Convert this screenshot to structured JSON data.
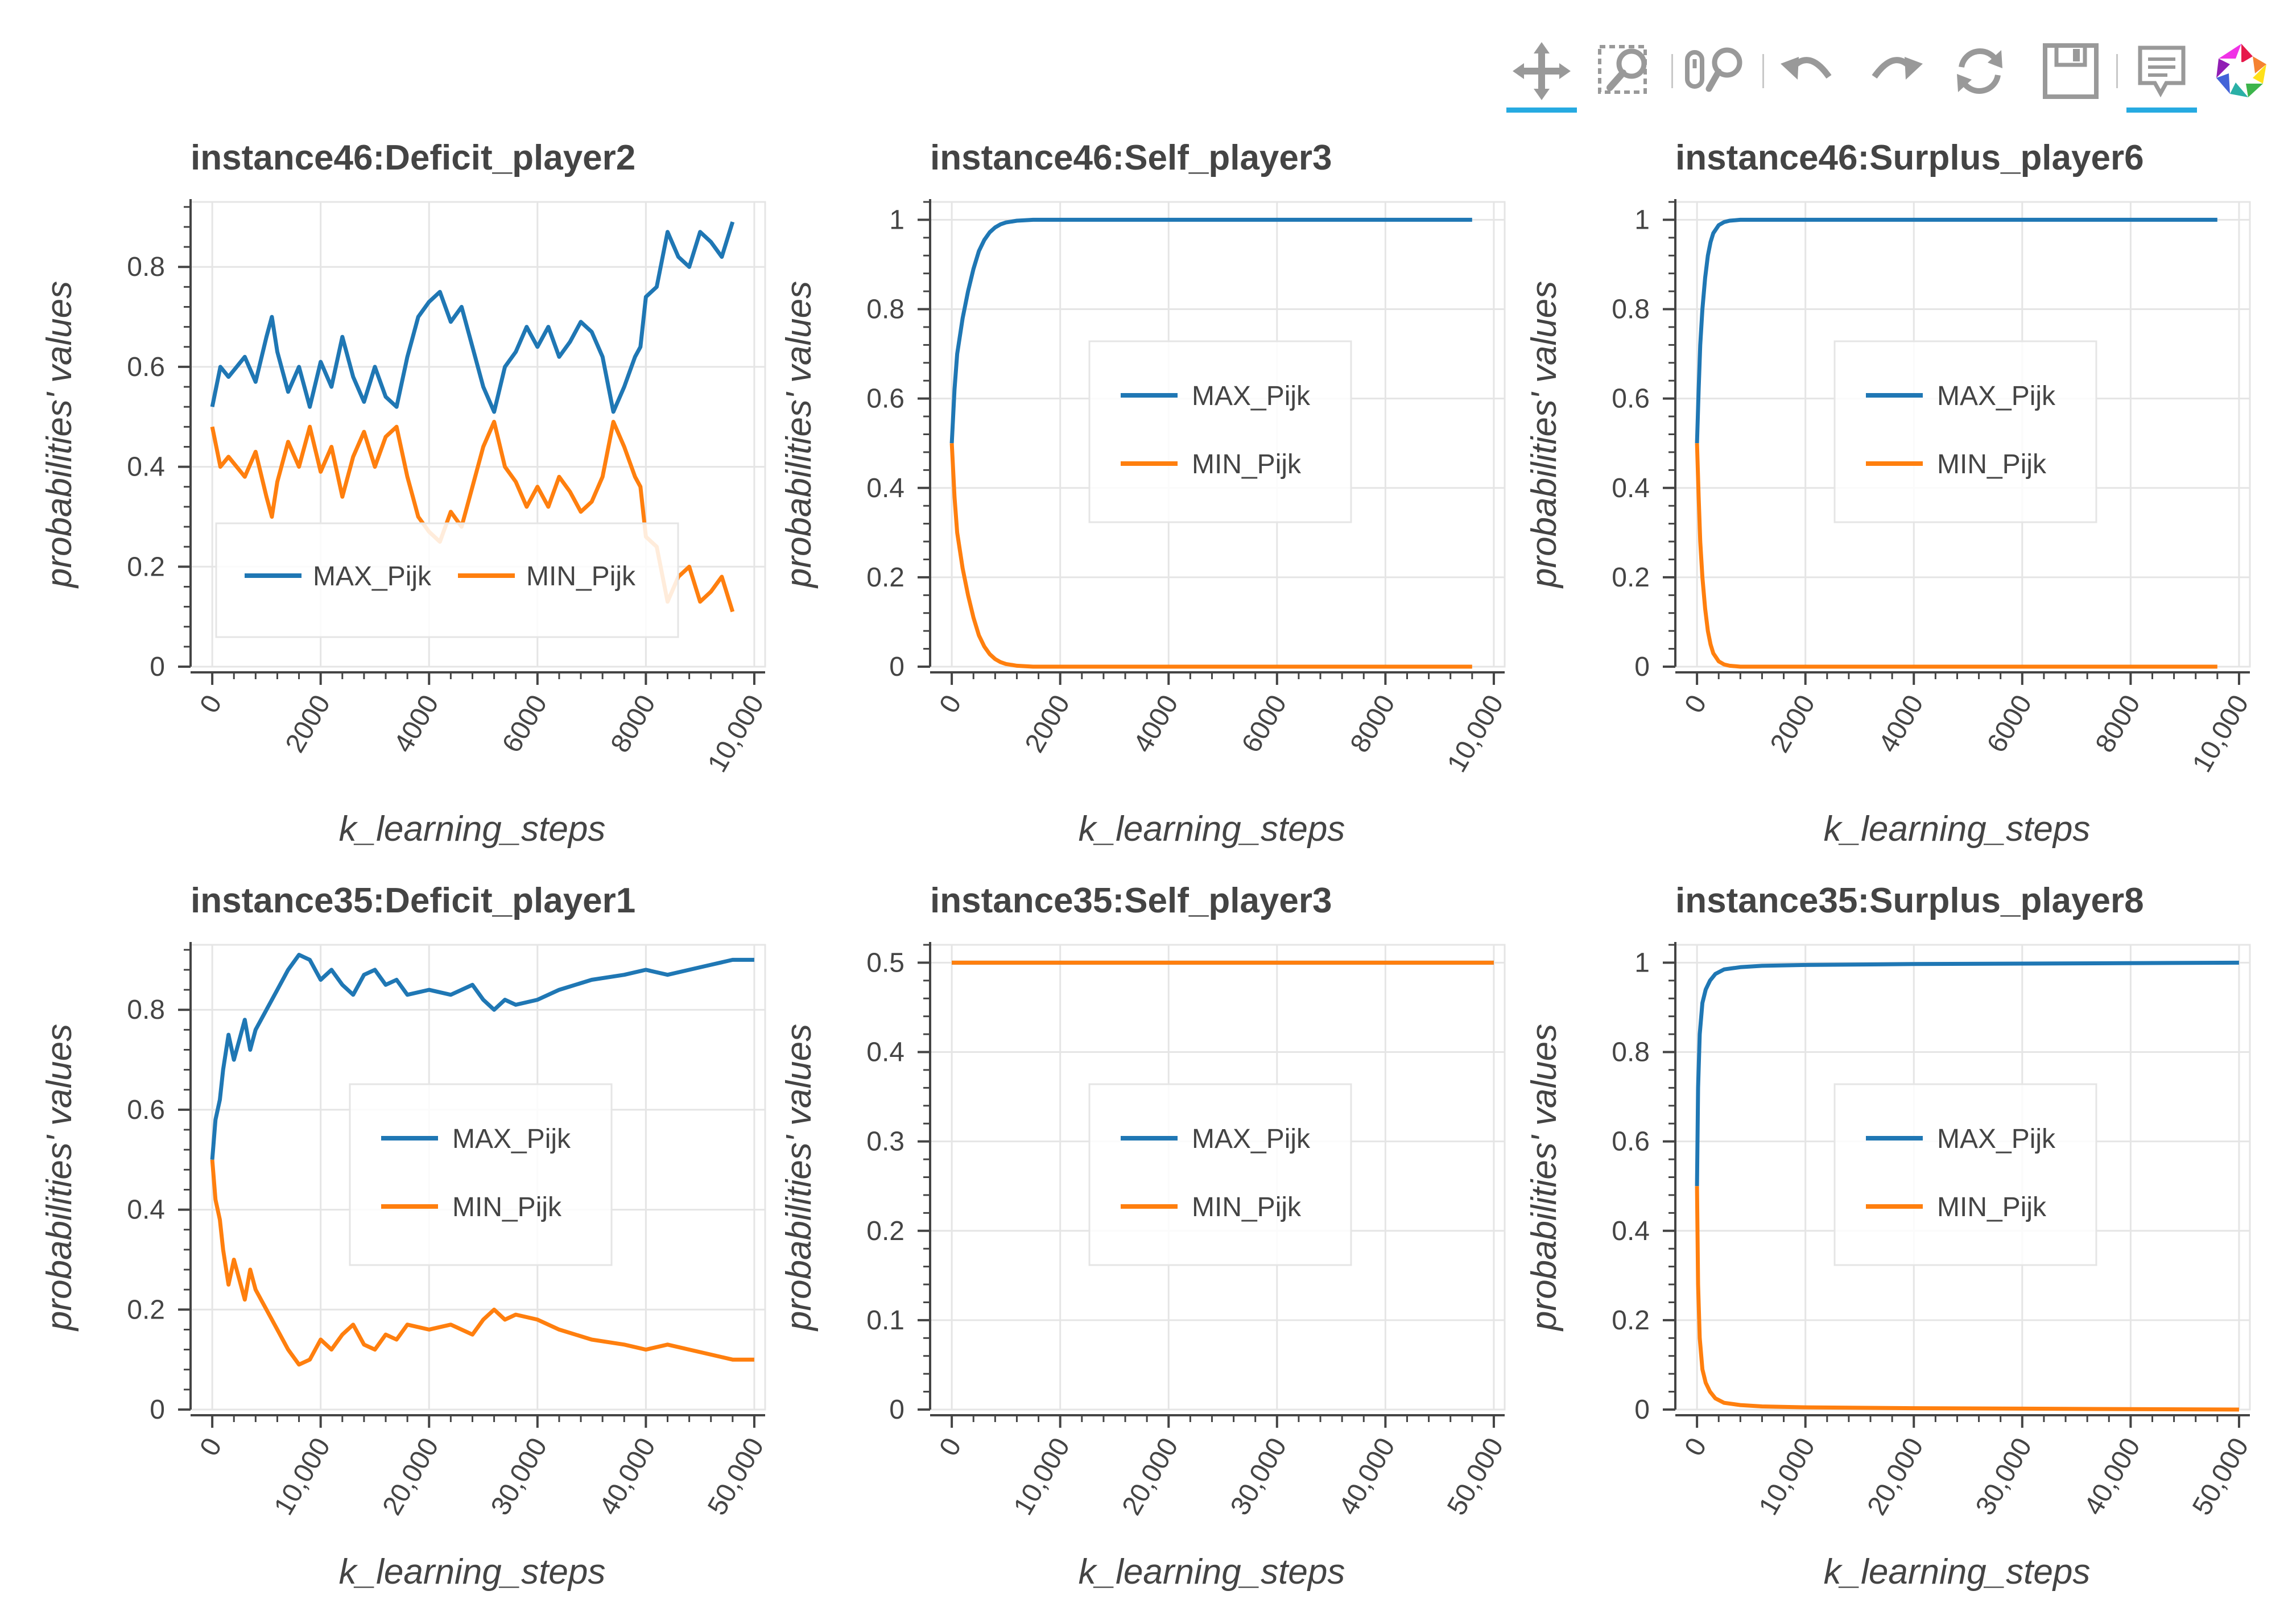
{
  "toolbar": {
    "tools": [
      {
        "name": "pan",
        "icon": "pan-icon",
        "active": true
      },
      {
        "name": "box-zoom",
        "icon": "box-zoom-icon",
        "active": false
      },
      {
        "name": "wheel-zoom",
        "icon": "wheel-zoom-icon",
        "active": false
      },
      {
        "name": "undo",
        "icon": "undo-icon",
        "active": false
      },
      {
        "name": "redo",
        "icon": "redo-icon",
        "active": false
      },
      {
        "name": "reset",
        "icon": "reset-icon",
        "active": false
      },
      {
        "name": "save",
        "icon": "save-icon",
        "active": false
      },
      {
        "name": "hover",
        "icon": "hover-icon",
        "active": true
      },
      {
        "name": "bokeh-logo",
        "icon": "bokeh-logo-icon",
        "active": false
      }
    ],
    "colors": {
      "active": "#26aae1",
      "icon": "#999999"
    }
  },
  "series_colors": {
    "MAX_Pijk": "#1f77b4",
    "MIN_Pijk": "#ff7f0e"
  },
  "chart_data": [
    {
      "type": "line",
      "title": "instance46:Deficit_player2",
      "xlabel": "k_learning_steps",
      "ylabel": "probabilities' values",
      "xlim": [
        -400,
        10200
      ],
      "ylim": [
        0,
        0.93
      ],
      "xticks": [
        0,
        2000,
        4000,
        6000,
        8000,
        10000
      ],
      "xtick_labels": [
        "0",
        "2000",
        "4000",
        "6000",
        "8000",
        "10,000"
      ],
      "yticks": [
        0,
        0.2,
        0.4,
        0.6,
        0.8
      ],
      "ytick_labels": [
        "0",
        "0.2",
        "0.4",
        "0.6",
        "0.8"
      ],
      "legend": "bottom-center-horizontal",
      "series": [
        {
          "name": "MAX_Pijk",
          "x": [
            0,
            150,
            300,
            450,
            600,
            800,
            1000,
            1100,
            1200,
            1400,
            1600,
            1800,
            2000,
            2200,
            2400,
            2600,
            2800,
            3000,
            3200,
            3400,
            3600,
            3700,
            3800,
            4000,
            4200,
            4400,
            4600,
            4800,
            5000,
            5200,
            5400,
            5600,
            5800,
            6000,
            6200,
            6400,
            6600,
            6800,
            7000,
            7200,
            7400,
            7600,
            7800,
            7900,
            8000,
            8200,
            8400,
            8600,
            8800,
            9000,
            9200,
            9400,
            9600
          ],
          "y": [
            0.52,
            0.6,
            0.58,
            0.6,
            0.62,
            0.57,
            0.66,
            0.7,
            0.63,
            0.55,
            0.6,
            0.52,
            0.61,
            0.56,
            0.66,
            0.58,
            0.53,
            0.6,
            0.54,
            0.52,
            0.62,
            0.66,
            0.7,
            0.73,
            0.75,
            0.69,
            0.72,
            0.64,
            0.56,
            0.51,
            0.6,
            0.63,
            0.68,
            0.64,
            0.68,
            0.62,
            0.65,
            0.69,
            0.67,
            0.62,
            0.51,
            0.56,
            0.62,
            0.64,
            0.74,
            0.76,
            0.87,
            0.82,
            0.8,
            0.87,
            0.85,
            0.82,
            0.89
          ]
        },
        {
          "name": "MIN_Pijk",
          "x": [
            0,
            150,
            300,
            450,
            600,
            800,
            1000,
            1100,
            1200,
            1400,
            1600,
            1800,
            2000,
            2200,
            2400,
            2600,
            2800,
            3000,
            3200,
            3400,
            3600,
            3700,
            3800,
            4000,
            4200,
            4400,
            4600,
            4800,
            5000,
            5200,
            5400,
            5600,
            5800,
            6000,
            6200,
            6400,
            6600,
            6800,
            7000,
            7200,
            7400,
            7600,
            7800,
            7900,
            8000,
            8200,
            8400,
            8600,
            8800,
            9000,
            9200,
            9400,
            9600
          ],
          "y": [
            0.48,
            0.4,
            0.42,
            0.4,
            0.38,
            0.43,
            0.34,
            0.3,
            0.37,
            0.45,
            0.4,
            0.48,
            0.39,
            0.44,
            0.34,
            0.42,
            0.47,
            0.4,
            0.46,
            0.48,
            0.38,
            0.34,
            0.3,
            0.27,
            0.25,
            0.31,
            0.28,
            0.36,
            0.44,
            0.49,
            0.4,
            0.37,
            0.32,
            0.36,
            0.32,
            0.38,
            0.35,
            0.31,
            0.33,
            0.38,
            0.49,
            0.44,
            0.38,
            0.36,
            0.26,
            0.24,
            0.13,
            0.18,
            0.2,
            0.13,
            0.15,
            0.18,
            0.11
          ]
        }
      ]
    },
    {
      "type": "line",
      "title": "instance46:Self_player3",
      "xlabel": "k_learning_steps",
      "ylabel": "probabilities' values",
      "xlim": [
        -400,
        10200
      ],
      "ylim": [
        0,
        1.04
      ],
      "xticks": [
        0,
        2000,
        4000,
        6000,
        8000,
        10000
      ],
      "xtick_labels": [
        "0",
        "2000",
        "4000",
        "6000",
        "8000",
        "10,000"
      ],
      "yticks": [
        0,
        0.2,
        0.4,
        0.6,
        0.8,
        1
      ],
      "ytick_labels": [
        "0",
        "0.2",
        "0.4",
        "0.6",
        "0.8",
        "1"
      ],
      "legend": "center",
      "series": [
        {
          "name": "MAX_Pijk",
          "x": [
            0,
            50,
            100,
            200,
            300,
            400,
            500,
            600,
            700,
            800,
            900,
            1000,
            1200,
            1500,
            2000,
            3000,
            5000,
            7000,
            9600
          ],
          "y": [
            0.5,
            0.62,
            0.7,
            0.78,
            0.84,
            0.89,
            0.93,
            0.955,
            0.972,
            0.983,
            0.99,
            0.994,
            0.998,
            1,
            1,
            1,
            1,
            1,
            1
          ]
        },
        {
          "name": "MIN_Pijk",
          "x": [
            0,
            50,
            100,
            200,
            300,
            400,
            500,
            600,
            700,
            800,
            900,
            1000,
            1200,
            1500,
            2000,
            3000,
            5000,
            7000,
            9600
          ],
          "y": [
            0.5,
            0.38,
            0.3,
            0.22,
            0.16,
            0.11,
            0.07,
            0.045,
            0.028,
            0.017,
            0.01,
            0.006,
            0.002,
            0,
            0,
            0,
            0,
            0,
            0
          ]
        }
      ]
    },
    {
      "type": "line",
      "title": "instance46:Surplus_player6",
      "xlabel": "k_learning_steps",
      "ylabel": "probabilities' values",
      "xlim": [
        -400,
        10200
      ],
      "ylim": [
        0,
        1.04
      ],
      "xticks": [
        0,
        2000,
        4000,
        6000,
        8000,
        10000
      ],
      "xtick_labels": [
        "0",
        "2000",
        "4000",
        "6000",
        "8000",
        "10,000"
      ],
      "yticks": [
        0,
        0.2,
        0.4,
        0.6,
        0.8,
        1
      ],
      "ytick_labels": [
        "0",
        "0.2",
        "0.4",
        "0.6",
        "0.8",
        "1"
      ],
      "legend": "center",
      "series": [
        {
          "name": "MAX_Pijk",
          "x": [
            0,
            30,
            60,
            100,
            150,
            200,
            250,
            300,
            400,
            500,
            600,
            800,
            1000,
            2000,
            5000,
            9600
          ],
          "y": [
            0.5,
            0.62,
            0.72,
            0.8,
            0.87,
            0.92,
            0.95,
            0.97,
            0.988,
            0.995,
            0.998,
            1,
            1,
            1,
            1,
            1
          ]
        },
        {
          "name": "MIN_Pijk",
          "x": [
            0,
            30,
            60,
            100,
            150,
            200,
            250,
            300,
            400,
            500,
            600,
            800,
            1000,
            2000,
            5000,
            9600
          ],
          "y": [
            0.5,
            0.38,
            0.28,
            0.2,
            0.13,
            0.08,
            0.05,
            0.03,
            0.012,
            0.005,
            0.002,
            0,
            0,
            0,
            0,
            0
          ]
        }
      ]
    },
    {
      "type": "line",
      "title": "instance35:Deficit_player1",
      "xlabel": "k_learning_steps",
      "ylabel": "probabilities' values",
      "xlim": [
        -2000,
        51000
      ],
      "ylim": [
        0,
        0.93
      ],
      "xticks": [
        0,
        10000,
        20000,
        30000,
        40000,
        50000
      ],
      "xtick_labels": [
        "0",
        "10,000",
        "20,000",
        "30,000",
        "40,000",
        "50,000"
      ],
      "yticks": [
        0,
        0.2,
        0.4,
        0.6,
        0.8
      ],
      "ytick_labels": [
        "0",
        "0.2",
        "0.4",
        "0.6",
        "0.8"
      ],
      "legend": "center",
      "series": [
        {
          "name": "MAX_Pijk",
          "x": [
            0,
            300,
            700,
            1000,
            1500,
            2000,
            2500,
            3000,
            3500,
            4000,
            5000,
            6000,
            7000,
            8000,
            9000,
            10000,
            11000,
            12000,
            13000,
            14000,
            15000,
            16000,
            17000,
            18000,
            20000,
            22000,
            24000,
            25000,
            26000,
            27000,
            28000,
            30000,
            32000,
            35000,
            38000,
            40000,
            42000,
            44000,
            46000,
            48000,
            50000
          ],
          "y": [
            0.5,
            0.58,
            0.62,
            0.68,
            0.75,
            0.7,
            0.74,
            0.78,
            0.72,
            0.76,
            0.8,
            0.84,
            0.88,
            0.91,
            0.9,
            0.86,
            0.88,
            0.85,
            0.83,
            0.87,
            0.88,
            0.85,
            0.86,
            0.83,
            0.84,
            0.83,
            0.85,
            0.82,
            0.8,
            0.82,
            0.81,
            0.82,
            0.84,
            0.86,
            0.87,
            0.88,
            0.87,
            0.88,
            0.89,
            0.9,
            0.9
          ]
        },
        {
          "name": "MIN_Pijk",
          "x": [
            0,
            300,
            700,
            1000,
            1500,
            2000,
            2500,
            3000,
            3500,
            4000,
            5000,
            6000,
            7000,
            8000,
            9000,
            10000,
            11000,
            12000,
            13000,
            14000,
            15000,
            16000,
            17000,
            18000,
            20000,
            22000,
            24000,
            25000,
            26000,
            27000,
            28000,
            30000,
            32000,
            35000,
            38000,
            40000,
            42000,
            44000,
            46000,
            48000,
            50000
          ],
          "y": [
            0.5,
            0.42,
            0.38,
            0.32,
            0.25,
            0.3,
            0.26,
            0.22,
            0.28,
            0.24,
            0.2,
            0.16,
            0.12,
            0.09,
            0.1,
            0.14,
            0.12,
            0.15,
            0.17,
            0.13,
            0.12,
            0.15,
            0.14,
            0.17,
            0.16,
            0.17,
            0.15,
            0.18,
            0.2,
            0.18,
            0.19,
            0.18,
            0.16,
            0.14,
            0.13,
            0.12,
            0.13,
            0.12,
            0.11,
            0.1,
            0.1
          ]
        }
      ]
    },
    {
      "type": "line",
      "title": "instance35:Self_player3",
      "xlabel": "k_learning_steps",
      "ylabel": "probabilities' values",
      "xlim": [
        -2000,
        51000
      ],
      "ylim": [
        0,
        0.52
      ],
      "xticks": [
        0,
        10000,
        20000,
        30000,
        40000,
        50000
      ],
      "xtick_labels": [
        "0",
        "10,000",
        "20,000",
        "30,000",
        "40,000",
        "50,000"
      ],
      "yticks": [
        0,
        0.1,
        0.2,
        0.3,
        0.4,
        0.5
      ],
      "ytick_labels": [
        "0",
        "0.1",
        "0.2",
        "0.3",
        "0.4",
        "0.5"
      ],
      "legend": "center",
      "series": [
        {
          "name": "MAX_Pijk",
          "x": [
            0,
            50000
          ],
          "y": [
            0.5,
            0.5
          ]
        },
        {
          "name": "MIN_Pijk",
          "x": [
            0,
            50000
          ],
          "y": [
            0.5,
            0.5
          ]
        }
      ]
    },
    {
      "type": "line",
      "title": "instance35:Surplus_player8",
      "xlabel": "k_learning_steps",
      "ylabel": "probabilities' values",
      "xlim": [
        -2000,
        51000
      ],
      "ylim": [
        0,
        1.04
      ],
      "xticks": [
        0,
        10000,
        20000,
        30000,
        40000,
        50000
      ],
      "xtick_labels": [
        "0",
        "10,000",
        "20,000",
        "30,000",
        "40,000",
        "50,000"
      ],
      "yticks": [
        0,
        0.2,
        0.4,
        0.6,
        0.8,
        1
      ],
      "ytick_labels": [
        "0",
        "0.2",
        "0.4",
        "0.6",
        "0.8",
        "1"
      ],
      "legend": "center",
      "series": [
        {
          "name": "MAX_Pijk",
          "x": [
            0,
            100,
            250,
            500,
            800,
            1200,
            1700,
            2500,
            4000,
            6000,
            10000,
            20000,
            30000,
            50000
          ],
          "y": [
            0.5,
            0.72,
            0.84,
            0.91,
            0.94,
            0.96,
            0.975,
            0.985,
            0.99,
            0.993,
            0.995,
            0.997,
            0.998,
            1
          ]
        },
        {
          "name": "MIN_Pijk",
          "x": [
            0,
            100,
            250,
            500,
            800,
            1200,
            1700,
            2500,
            4000,
            6000,
            10000,
            20000,
            30000,
            50000
          ],
          "y": [
            0.5,
            0.28,
            0.16,
            0.09,
            0.06,
            0.04,
            0.025,
            0.015,
            0.01,
            0.007,
            0.005,
            0.003,
            0.002,
            0
          ]
        }
      ]
    }
  ]
}
